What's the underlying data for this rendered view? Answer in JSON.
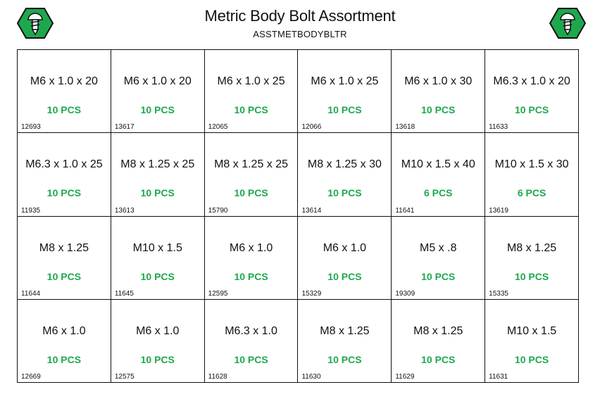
{
  "header": {
    "title": "Metric Body Bolt Assortment",
    "subtitle": "ASSTMETBODYBLTR",
    "logo_icon": "screw-hexagon-icon",
    "accent_color": "#1ea84e"
  },
  "cells": [
    {
      "size": "M6 x 1.0 x 20",
      "qty": "10 PCS",
      "part": "12693"
    },
    {
      "size": "M6 x 1.0 x 20",
      "qty": "10 PCS",
      "part": "13617"
    },
    {
      "size": "M6 x 1.0 x 25",
      "qty": "10 PCS",
      "part": "12065"
    },
    {
      "size": "M6 x 1.0 x 25",
      "qty": "10 PCS",
      "part": "12066"
    },
    {
      "size": "M6 x 1.0 x 30",
      "qty": "10 PCS",
      "part": "13618"
    },
    {
      "size": "M6.3 x 1.0 x 20",
      "qty": "10 PCS",
      "part": "11633"
    },
    {
      "size": "M6.3 x 1.0 x 25",
      "qty": "10 PCS",
      "part": "11935"
    },
    {
      "size": "M8 x 1.25 x 25",
      "qty": "10 PCS",
      "part": "13613"
    },
    {
      "size": "M8 x 1.25 x 25",
      "qty": "10 PCS",
      "part": "15790"
    },
    {
      "size": "M8 x 1.25 x 30",
      "qty": "10 PCS",
      "part": "13614"
    },
    {
      "size": "M10 x 1.5 x 40",
      "qty": "6 PCS",
      "part": "11641"
    },
    {
      "size": "M10 x 1.5 x 30",
      "qty": "6 PCS",
      "part": "13619"
    },
    {
      "size": "M8 x 1.25",
      "qty": "10 PCS",
      "part": "11644"
    },
    {
      "size": "M10 x 1.5",
      "qty": "10 PCS",
      "part": "11645"
    },
    {
      "size": "M6 x 1.0",
      "qty": "10 PCS",
      "part": "12595"
    },
    {
      "size": "M6 x 1.0",
      "qty": "10 PCS",
      "part": "15329"
    },
    {
      "size": "M5 x .8",
      "qty": "10 PCS",
      "part": "19309"
    },
    {
      "size": "M8 x 1.25",
      "qty": "10 PCS",
      "part": "15335"
    },
    {
      "size": "M6 x 1.0",
      "qty": "10 PCS",
      "part": "12669"
    },
    {
      "size": "M6 x 1.0",
      "qty": "10 PCS",
      "part": "12575"
    },
    {
      "size": "M6.3 x 1.0",
      "qty": "10 PCS",
      "part": "11628"
    },
    {
      "size": "M8 x 1.25",
      "qty": "10 PCS",
      "part": "11630"
    },
    {
      "size": "M8 x 1.25",
      "qty": "10 PCS",
      "part": "11629"
    },
    {
      "size": "M10 x 1.5",
      "qty": "10 PCS",
      "part": "11631"
    }
  ]
}
